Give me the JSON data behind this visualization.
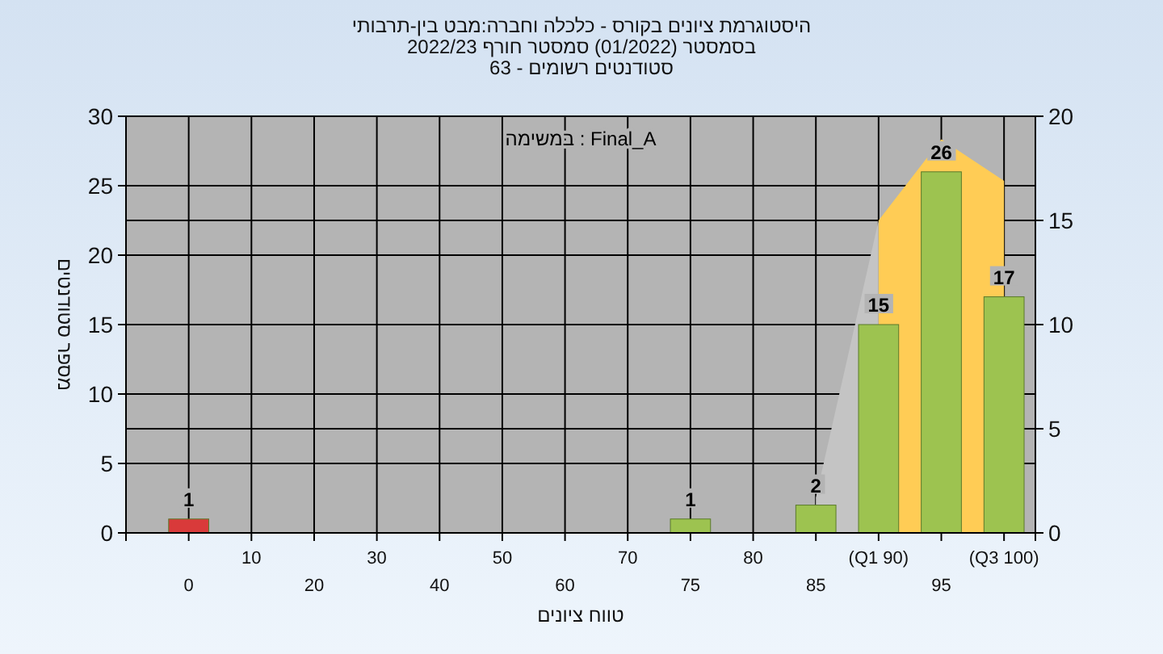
{
  "chart_data": {
    "type": "bar",
    "title": "היסטוגרמת ציונים בקורס - כלכלה וחברה:מבט בין-תרבותי",
    "subtitle": "בסמסטר (01/2022) סמסטר חורף 2022/23\nסטודנטים רשומים - 63",
    "xlabel": "טווח ציונים",
    "ylabel": "מספר סטודנטים",
    "annotations": [
      "במשימה : Final_A"
    ],
    "categories": [
      "0",
      "10",
      "20",
      "30",
      "40",
      "50",
      "60",
      "70",
      "75",
      "80",
      "85",
      "(Q1 90)",
      "95",
      "(Q3 100)"
    ],
    "series": [
      {
        "type": "area",
        "axis": "y2",
        "color": "#c4c4c4",
        "values": [
          null,
          null,
          null,
          null,
          null,
          null,
          null,
          null,
          null,
          null,
          1.7,
          15,
          null,
          null
        ]
      },
      {
        "type": "area",
        "axis": "y2",
        "color": "#ffcc55",
        "values": [
          null,
          null,
          null,
          null,
          null,
          null,
          null,
          null,
          null,
          null,
          null,
          15,
          18.9,
          16.9
        ]
      },
      {
        "colors": [
          "#d93a3a",
          "#9dc350",
          "#9dc350",
          "#9dc350",
          "#9dc350",
          "#9dc350",
          "#9dc350",
          "#9dc350",
          "#9dc350",
          "#9dc350",
          "#9dc350",
          "#9dc350",
          "#9dc350",
          "#9dc350"
        ],
        "values": [
          1,
          0,
          0,
          0,
          0,
          0,
          0,
          0,
          1,
          0,
          2,
          15,
          26,
          17
        ],
        "value_labels": [
          "1",
          null,
          null,
          null,
          null,
          null,
          null,
          null,
          "1",
          null,
          "2",
          "15",
          "26",
          "17"
        ]
      }
    ],
    "ylim": [
      0,
      30
    ],
    "yticks": [
      0,
      5,
      10,
      15,
      20,
      25,
      30
    ],
    "y2lim": [
      0,
      20
    ],
    "y2ticks": [
      0,
      5,
      10,
      15,
      20
    ],
    "grid": true
  }
}
